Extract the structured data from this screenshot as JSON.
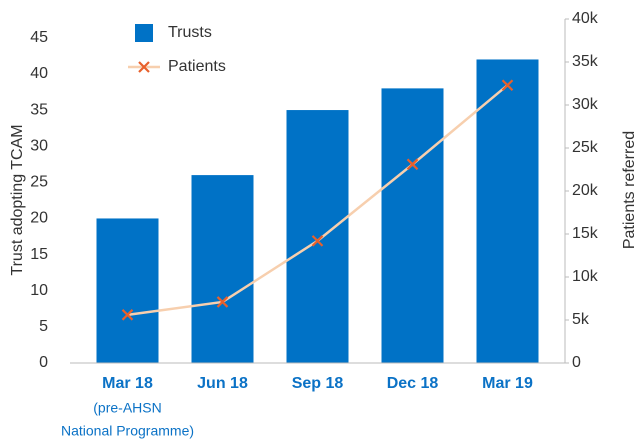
{
  "chart_data": {
    "type": "bar_line",
    "categories": [
      "Mar 18",
      "Jun 18",
      "Sep 18",
      "Dec 18",
      "Mar 19"
    ],
    "category_note": [
      "(pre-AHSN",
      "National Programme)"
    ],
    "y_label": "Trust adopting TCAM",
    "y2_label": "Patients referred",
    "series": [
      {
        "name": "Trusts",
        "color": "#0072c6",
        "values": [
          20,
          26,
          35,
          38,
          42
        ]
      },
      {
        "name": "Patients",
        "color": "#e8602c",
        "line_color": "#f7cfae",
        "axis": "y2",
        "values": [
          5600,
          7100,
          14200,
          23100,
          32300
        ]
      }
    ],
    "ylim": [
      0,
      47.6
    ],
    "yticks": [
      0,
      5,
      10,
      15,
      20,
      25,
      30,
      35,
      40,
      45
    ],
    "y2lim": [
      0,
      40000
    ],
    "y2ticks": [
      0,
      {
        "value": 5000,
        "label": "5k"
      },
      {
        "value": 10000,
        "label": "10k"
      },
      {
        "value": 15000,
        "label": "15k"
      },
      {
        "value": 20000,
        "label": "20k"
      },
      {
        "value": 25000,
        "label": "25k"
      },
      {
        "value": 30000,
        "label": "30k"
      },
      {
        "value": 35000,
        "label": "35k"
      },
      {
        "value": 40000,
        "label": "40k"
      }
    ],
    "legend": "top-left"
  }
}
